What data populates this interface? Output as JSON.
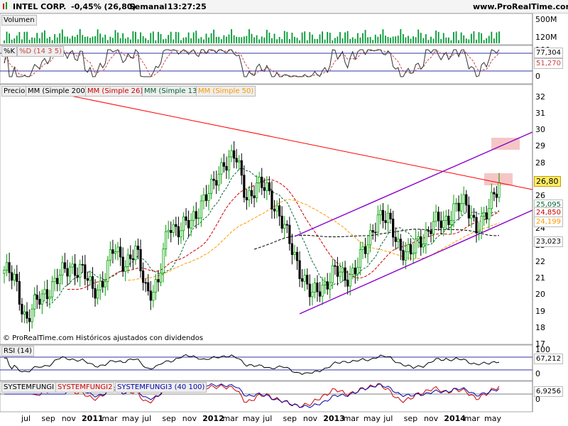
{
  "header": {
    "symbol": "INTEL CORP.",
    "change": "-0,45% (26,80)",
    "period": "Semanal",
    "time": "13:27:25",
    "site": "www.ProRealTime.com"
  },
  "volume": {
    "label": "Volumen",
    "ticks": [
      "500M",
      "120M"
    ]
  },
  "stoch": {
    "k_label": "%K",
    "d_label": "%D (14 3 5)",
    "ticks": [
      "100",
      "0"
    ],
    "k_value": "77,304",
    "d_value": "51,270"
  },
  "price": {
    "legend": [
      "Precio",
      "MM (Simple 200)",
      "MM (Simple 26)",
      "MM (Simple 13)",
      "MM (Simple 50)"
    ],
    "ticks": [
      "32",
      "31",
      "30",
      "29",
      "28",
      "27",
      "26",
      "25",
      "24",
      "23",
      "22",
      "21",
      "20",
      "19",
      "18",
      "17"
    ],
    "tags": {
      "last": "26,80",
      "sma13": "25,095",
      "sma26": "24,850",
      "sma50": "24,199",
      "sma200": "23,023"
    },
    "watermark": "© ProRealTime.com Históricos ajustados con dividendos"
  },
  "rsi": {
    "label": "RSI (14)",
    "ticks": [
      "100",
      "0"
    ],
    "value": "67,212"
  },
  "system": {
    "labels": [
      "SYSTEMFUNGI",
      "SYSTEMFUNGI2",
      "SYSTEMFUNGI3 (40 100)"
    ],
    "value": "6,9256",
    "zero": "0"
  },
  "xaxis": [
    "jul",
    "sep",
    "nov",
    "2011",
    "mar",
    "may",
    "jul",
    "sep",
    "nov",
    "2012",
    "mar",
    "may",
    "jul",
    "sep",
    "nov",
    "2013",
    "mar",
    "may",
    "jul",
    "sep",
    "nov",
    "2014",
    "mar",
    "may"
  ],
  "colors": {
    "up": "#00a000",
    "down": "#000000",
    "volume": "#009933",
    "sma200": "#000000",
    "sma26": "#cc0000",
    "sma13": "#006633",
    "sma50": "#ff9900",
    "trend_red": "#ff0000",
    "channel": "#8800cc",
    "zone": "#f4b8b8"
  },
  "chart_data": [
    {
      "type": "bar",
      "title": "Volumen",
      "ylim": [
        0,
        500000000
      ]
    },
    {
      "type": "line",
      "title": "%K %D (14 3 5)",
      "ylim": [
        0,
        100
      ],
      "series": [
        {
          "name": "%K",
          "last": 77.304
        },
        {
          "name": "%D (14 3 5)",
          "last": 51.27
        }
      ]
    },
    {
      "type": "line",
      "title": "INTEL CORP. Semanal",
      "ylim": [
        17,
        32.5
      ],
      "x": [
        "2010-07",
        "2010-08",
        "2010-09",
        "2010-10",
        "2010-11",
        "2010-12",
        "2011-01",
        "2011-02",
        "2011-03",
        "2011-04",
        "2011-05",
        "2011-06",
        "2011-07",
        "2011-08",
        "2011-09",
        "2011-10",
        "2011-11",
        "2011-12",
        "2012-01",
        "2012-02",
        "2012-03",
        "2012-04",
        "2012-05",
        "2012-06",
        "2012-07",
        "2012-08",
        "2012-09",
        "2012-10",
        "2012-11",
        "2012-12",
        "2013-01",
        "2013-02",
        "2013-03",
        "2013-04",
        "2013-05",
        "2013-06",
        "2013-07",
        "2013-08",
        "2013-09",
        "2013-10",
        "2013-11",
        "2013-12",
        "2014-01",
        "2014-02",
        "2014-03",
        "2014-04"
      ],
      "series": [
        {
          "name": "Precio",
          "values": [
            21.5,
            20.8,
            18.5,
            19.5,
            20.4,
            21.0,
            21.8,
            21.5,
            20.3,
            20.8,
            22.8,
            22.0,
            22.5,
            20.3,
            20.5,
            24.4,
            24.0,
            24.3,
            25.8,
            26.4,
            28.2,
            28.4,
            26.0,
            26.6,
            26.3,
            25.0,
            23.0,
            21.5,
            19.8,
            20.6,
            21.4,
            21.0,
            21.7,
            22.8,
            25.0,
            24.3,
            23.0,
            22.4,
            23.4,
            24.4,
            24.2,
            25.5,
            25.3,
            24.3,
            24.8,
            26.8
          ]
        },
        {
          "name": "MM (Simple 13)",
          "last": 25.095
        },
        {
          "name": "MM (Simple 26)",
          "last": 24.85
        },
        {
          "name": "MM (Simple 50)",
          "last": 24.199
        },
        {
          "name": "MM (Simple 200)",
          "last": 23.023
        }
      ]
    },
    {
      "type": "line",
      "title": "RSI (14)",
      "ylim": [
        0,
        100
      ],
      "series": [
        {
          "name": "RSI (14)",
          "last": 67.212
        }
      ]
    },
    {
      "type": "line",
      "title": "SYSTEMFUNGI SYSTEMFUNGI2 SYSTEMFUNGI3 (40 100)",
      "series": [
        {
          "name": "SYSTEMFUNGI",
          "last": 6.9256
        },
        {
          "name": "SYSTEMFUNGI2"
        },
        {
          "name": "SYSTEMFUNGI3 (40 100)"
        }
      ]
    }
  ]
}
